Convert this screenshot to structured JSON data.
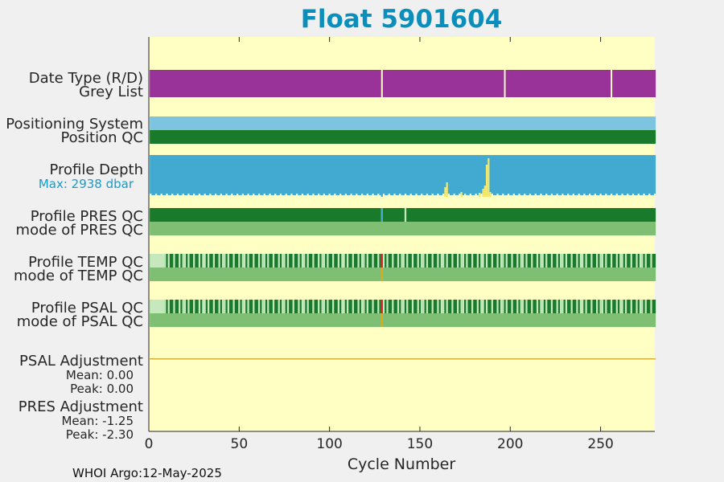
{
  "title": "Float 5901604",
  "footer": "WHOI Argo:12-May-2025",
  "colors": {
    "background_axes": "#ffffc4",
    "purple": "#993399",
    "light_blue": "#7ec3e0",
    "blue": "#42a9d1",
    "dark_green": "#197a2b",
    "mid_green": "#7ebf74",
    "pale_green": "#c5e8bc",
    "red": "#e02020",
    "yellow": "#f7e76a",
    "orange": "#e6a817",
    "title_color": "#0a8fbd"
  },
  "rows": {
    "data_type": {
      "line1": "Date Type (R/D)",
      "line2": "Grey List"
    },
    "position": {
      "line1": "Positioning System",
      "line2": "Position QC"
    },
    "depth": {
      "line1": "Profile Depth",
      "max_label": "Max: 2938 dbar"
    },
    "pres": {
      "line1": "Profile PRES QC",
      "line2": "mode of PRES QC"
    },
    "temp": {
      "line1": "Profile TEMP QC",
      "line2": "mode of TEMP QC"
    },
    "psal": {
      "line1": "Profile PSAL QC",
      "line2": "mode of PSAL QC"
    },
    "psal_adj": {
      "line1": "PSAL Adjustment",
      "mean": "Mean: 0.00",
      "peak": "Peak: 0.00"
    },
    "pres_adj": {
      "line1": "PRES Adjustment",
      "mean": "Mean: -1.25",
      "peak": "Peak: -2.30"
    }
  },
  "chart_data": {
    "type": "heatmap",
    "title": "Float 5901604",
    "xlabel": "Cycle Number",
    "xlim": [
      0,
      280
    ],
    "xticks": [
      0,
      50,
      100,
      150,
      200,
      250
    ],
    "grid": false,
    "max_depth_dbar": 2938,
    "grey_list_gap_cycles": [
      129,
      197,
      256
    ],
    "profile_depth_short_cycles": [
      129,
      164,
      165,
      173,
      183,
      185,
      186,
      187,
      188,
      189
    ],
    "pres_qc_gap_cycles": [
      129,
      142
    ],
    "temp_qc_bad_cycle": 129,
    "psal_qc_bad_cycle": 129
  }
}
